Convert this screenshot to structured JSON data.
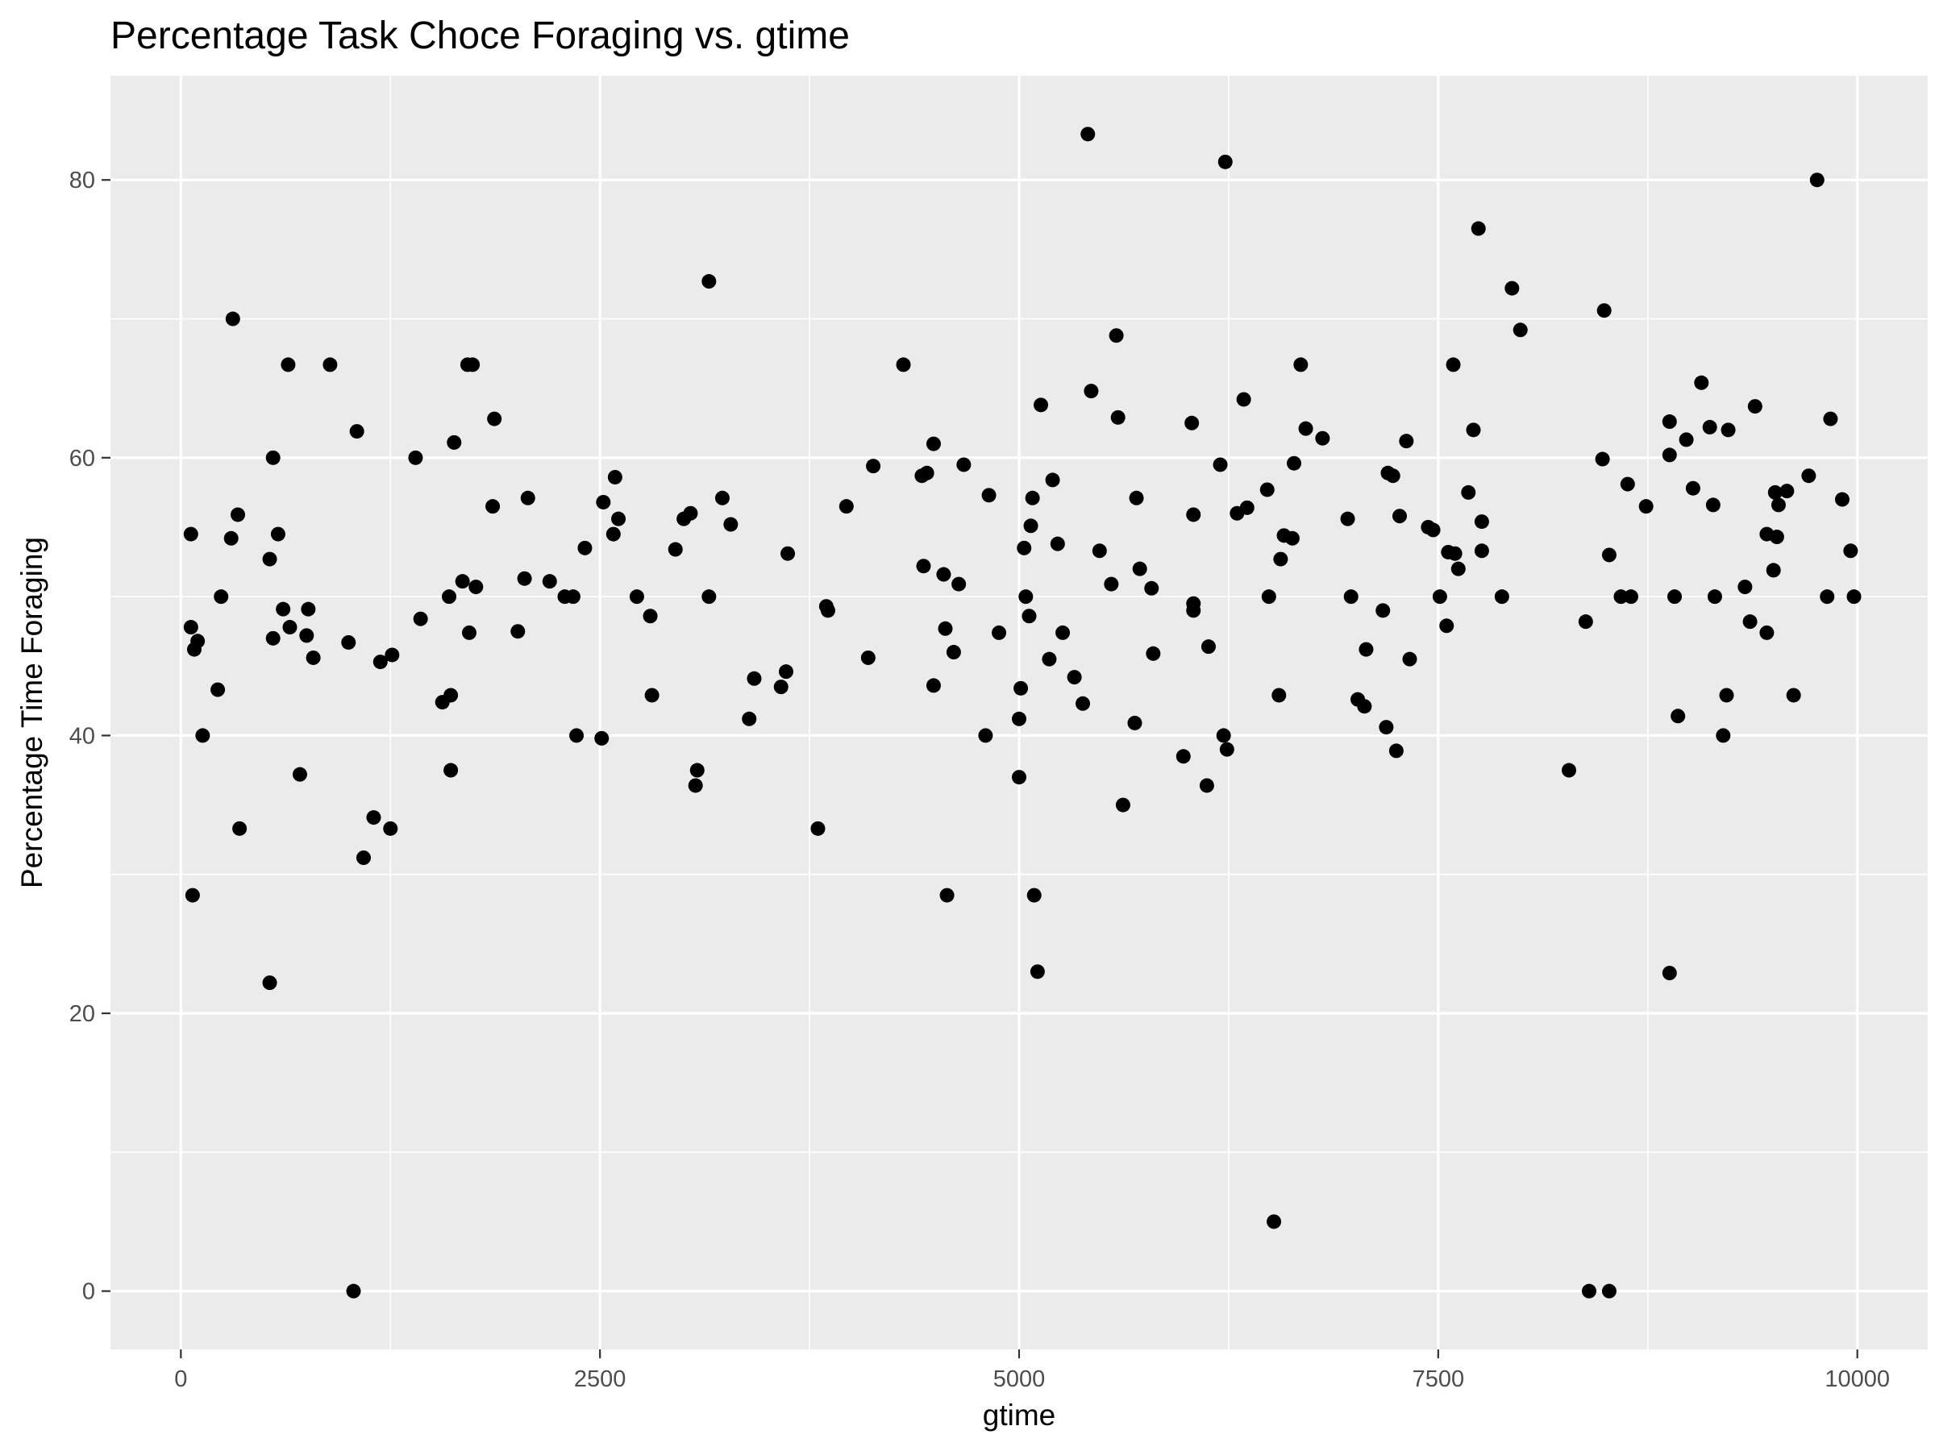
{
  "chart_data": {
    "type": "scatter",
    "title": "Percentage Task Choce Foraging vs. gtime",
    "xlabel": "gtime",
    "ylabel": "Percentage Time Foraging",
    "xlim": [
      -420,
      10420
    ],
    "ylim": [
      -4.2,
      87.5
    ],
    "x_ticks": [
      0,
      2500,
      5000,
      7500,
      10000
    ],
    "x_tick_labels": [
      "0",
      "2500",
      "5000",
      "7500",
      "10000"
    ],
    "x_minor": [
      1250,
      3750,
      6250,
      8750
    ],
    "y_ticks": [
      0,
      20,
      40,
      60,
      80
    ],
    "y_tick_labels": [
      "0",
      "20",
      "40",
      "60",
      "80"
    ],
    "y_minor": [
      10,
      30,
      50,
      70
    ],
    "grid": true,
    "panel_background": "#ebebeb",
    "point_color": "#000000",
    "points": [
      [
        60,
        54.5
      ],
      [
        60,
        47.8
      ],
      [
        70,
        28.5
      ],
      [
        80,
        46.2
      ],
      [
        100,
        46.8
      ],
      [
        130,
        40.0
      ],
      [
        220,
        43.3
      ],
      [
        240,
        50.0
      ],
      [
        300,
        54.2
      ],
      [
        310,
        70.0
      ],
      [
        340,
        55.9
      ],
      [
        350,
        33.3
      ],
      [
        530,
        52.7
      ],
      [
        530,
        22.2
      ],
      [
        550,
        47.0
      ],
      [
        550,
        60.0
      ],
      [
        580,
        54.5
      ],
      [
        610,
        49.1
      ],
      [
        640,
        66.7
      ],
      [
        650,
        47.8
      ],
      [
        710,
        37.2
      ],
      [
        750,
        47.2
      ],
      [
        760,
        49.1
      ],
      [
        790,
        45.6
      ],
      [
        890,
        66.7
      ],
      [
        1000,
        46.7
      ],
      [
        1030,
        0.0
      ],
      [
        1050,
        61.9
      ],
      [
        1090,
        31.2
      ],
      [
        1150,
        34.1
      ],
      [
        1190,
        45.3
      ],
      [
        1250,
        33.3
      ],
      [
        1260,
        45.8
      ],
      [
        1400,
        60.0
      ],
      [
        1430,
        48.4
      ],
      [
        1560,
        42.4
      ],
      [
        1600,
        50.0
      ],
      [
        1610,
        42.9
      ],
      [
        1610,
        37.5
      ],
      [
        1630,
        61.1
      ],
      [
        1680,
        51.1
      ],
      [
        1710,
        66.7
      ],
      [
        1720,
        47.4
      ],
      [
        1740,
        66.7
      ],
      [
        1760,
        50.7
      ],
      [
        1860,
        56.5
      ],
      [
        1870,
        62.8
      ],
      [
        2010,
        47.5
      ],
      [
        2050,
        51.3
      ],
      [
        2070,
        57.1
      ],
      [
        2200,
        51.1
      ],
      [
        2290,
        50.0
      ],
      [
        2340,
        50.0
      ],
      [
        2360,
        40.0
      ],
      [
        2410,
        53.5
      ],
      [
        2510,
        39.8
      ],
      [
        2520,
        56.8
      ],
      [
        2580,
        54.5
      ],
      [
        2590,
        58.6
      ],
      [
        2610,
        55.6
      ],
      [
        2720,
        50.0
      ],
      [
        2800,
        48.6
      ],
      [
        2810,
        42.9
      ],
      [
        2950,
        53.4
      ],
      [
        3000,
        55.6
      ],
      [
        3040,
        56.0
      ],
      [
        3070,
        36.4
      ],
      [
        3080,
        37.5
      ],
      [
        3150,
        72.7
      ],
      [
        3150,
        50.0
      ],
      [
        3230,
        57.1
      ],
      [
        3280,
        55.2
      ],
      [
        3390,
        41.2
      ],
      [
        3420,
        44.1
      ],
      [
        3580,
        43.5
      ],
      [
        3610,
        44.6
      ],
      [
        3620,
        53.1
      ],
      [
        3800,
        33.3
      ],
      [
        3850,
        49.3
      ],
      [
        3860,
        49.0
      ],
      [
        3970,
        56.5
      ],
      [
        4100,
        45.6
      ],
      [
        4130,
        59.4
      ],
      [
        4310,
        66.7
      ],
      [
        4420,
        58.7
      ],
      [
        4430,
        52.2
      ],
      [
        4450,
        58.9
      ],
      [
        4490,
        61.0
      ],
      [
        4490,
        43.6
      ],
      [
        4550,
        51.6
      ],
      [
        4560,
        47.7
      ],
      [
        4570,
        28.5
      ],
      [
        4610,
        46.0
      ],
      [
        4640,
        50.9
      ],
      [
        4670,
        59.5
      ],
      [
        4800,
        40.0
      ],
      [
        4820,
        57.3
      ],
      [
        4880,
        47.4
      ],
      [
        5000,
        37.0
      ],
      [
        5000,
        41.2
      ],
      [
        5010,
        43.4
      ],
      [
        5030,
        53.5
      ],
      [
        5040,
        50.0
      ],
      [
        5060,
        48.6
      ],
      [
        5070,
        55.1
      ],
      [
        5080,
        57.1
      ],
      [
        5090,
        28.5
      ],
      [
        5110,
        23.0
      ],
      [
        5130,
        63.8
      ],
      [
        5180,
        45.5
      ],
      [
        5200,
        58.4
      ],
      [
        5230,
        53.8
      ],
      [
        5260,
        47.4
      ],
      [
        5330,
        44.2
      ],
      [
        5380,
        42.3
      ],
      [
        5410,
        83.3
      ],
      [
        5430,
        64.8
      ],
      [
        5480,
        53.3
      ],
      [
        5550,
        50.9
      ],
      [
        5580,
        68.8
      ],
      [
        5590,
        62.9
      ],
      [
        5620,
        35.0
      ],
      [
        5690,
        40.9
      ],
      [
        5700,
        57.1
      ],
      [
        5720,
        52.0
      ],
      [
        5790,
        50.6
      ],
      [
        5800,
        45.9
      ],
      [
        5980,
        38.5
      ],
      [
        6030,
        62.5
      ],
      [
        6040,
        55.9
      ],
      [
        6040,
        49.5
      ],
      [
        6040,
        49.0
      ],
      [
        6120,
        36.4
      ],
      [
        6130,
        46.4
      ],
      [
        6200,
        59.5
      ],
      [
        6220,
        40.0
      ],
      [
        6230,
        81.3
      ],
      [
        6240,
        39.0
      ],
      [
        6300,
        56.0
      ],
      [
        6340,
        64.2
      ],
      [
        6360,
        56.4
      ],
      [
        6480,
        57.7
      ],
      [
        6490,
        50.0
      ],
      [
        6520,
        5.0
      ],
      [
        6550,
        42.9
      ],
      [
        6560,
        52.7
      ],
      [
        6580,
        54.4
      ],
      [
        6630,
        54.2
      ],
      [
        6640,
        59.6
      ],
      [
        6680,
        66.7
      ],
      [
        6710,
        62.1
      ],
      [
        6810,
        61.4
      ],
      [
        6960,
        55.6
      ],
      [
        6980,
        50.0
      ],
      [
        7020,
        42.6
      ],
      [
        7060,
        42.1
      ],
      [
        7070,
        46.2
      ],
      [
        7170,
        49.0
      ],
      [
        7190,
        40.6
      ],
      [
        7200,
        58.9
      ],
      [
        7230,
        58.7
      ],
      [
        7250,
        38.9
      ],
      [
        7270,
        55.8
      ],
      [
        7310,
        61.2
      ],
      [
        7330,
        45.5
      ],
      [
        7440,
        55.0
      ],
      [
        7470,
        54.8
      ],
      [
        7510,
        50.0
      ],
      [
        7550,
        47.9
      ],
      [
        7560,
        53.2
      ],
      [
        7590,
        66.7
      ],
      [
        7600,
        53.1
      ],
      [
        7620,
        52.0
      ],
      [
        7680,
        57.5
      ],
      [
        7710,
        62.0
      ],
      [
        7740,
        76.5
      ],
      [
        7760,
        53.3
      ],
      [
        7760,
        55.4
      ],
      [
        7880,
        50.0
      ],
      [
        7940,
        72.2
      ],
      [
        7990,
        69.2
      ],
      [
        8280,
        37.5
      ],
      [
        8380,
        48.2
      ],
      [
        8400,
        0.0
      ],
      [
        8480,
        59.9
      ],
      [
        8490,
        70.6
      ],
      [
        8520,
        53.0
      ],
      [
        8520,
        0.0
      ],
      [
        8590,
        50.0
      ],
      [
        8630,
        58.1
      ],
      [
        8650,
        50.0
      ],
      [
        8740,
        56.5
      ],
      [
        8880,
        62.6
      ],
      [
        8880,
        60.2
      ],
      [
        8880,
        22.9
      ],
      [
        8910,
        50.0
      ],
      [
        8930,
        41.4
      ],
      [
        8980,
        61.3
      ],
      [
        9020,
        57.8
      ],
      [
        9070,
        65.4
      ],
      [
        9120,
        62.2
      ],
      [
        9140,
        56.6
      ],
      [
        9150,
        50.0
      ],
      [
        9200,
        40.0
      ],
      [
        9220,
        42.9
      ],
      [
        9230,
        62.0
      ],
      [
        9330,
        50.7
      ],
      [
        9360,
        48.2
      ],
      [
        9390,
        63.7
      ],
      [
        9460,
        47.4
      ],
      [
        9460,
        54.5
      ],
      [
        9500,
        51.9
      ],
      [
        9510,
        57.5
      ],
      [
        9520,
        54.3
      ],
      [
        9530,
        56.6
      ],
      [
        9580,
        57.6
      ],
      [
        9620,
        42.9
      ],
      [
        9710,
        58.7
      ],
      [
        9760,
        80.0
      ],
      [
        9820,
        50.0
      ],
      [
        9840,
        62.8
      ],
      [
        9910,
        57.0
      ],
      [
        9960,
        53.3
      ],
      [
        9980,
        50.0
      ]
    ]
  }
}
